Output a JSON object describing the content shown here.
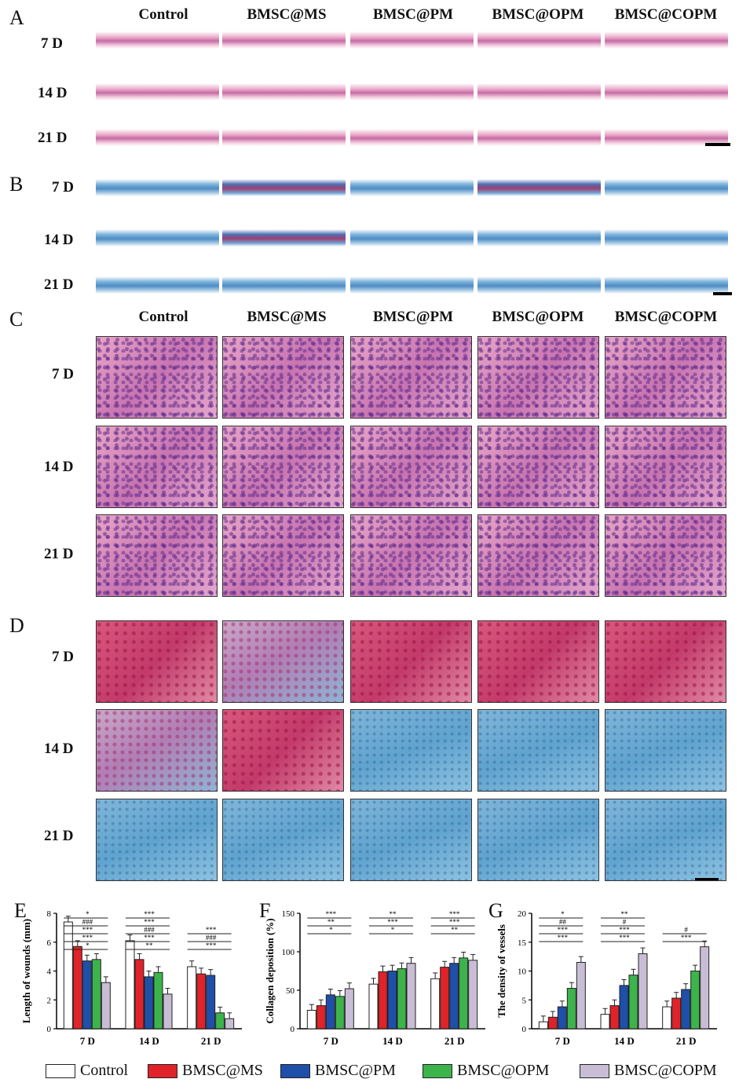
{
  "panels": {
    "A": "A",
    "B": "B",
    "C": "C",
    "D": "D",
    "E": "E",
    "F": "F",
    "G": "G"
  },
  "groups": [
    "Control",
    "BMSC@MS",
    "BMSC@PM",
    "BMSC@OPM",
    "BMSC@COPM"
  ],
  "days": [
    "7 D",
    "14 D",
    "21 D"
  ],
  "colors": {
    "Control": "#ffffff",
    "BMSC@MS": "#e0222a",
    "BMSC@PM": "#1f4fa8",
    "BMSC@OPM": "#3cb44b",
    "BMSC@COPM": "#c9bdd6"
  },
  "chart_data": [
    {
      "type": "bar",
      "panel": "E",
      "ylabel": "Length of wounds (mm)",
      "categories": [
        "7 D",
        "14 D",
        "21 D"
      ],
      "ylim": [
        0,
        8
      ],
      "yticks": [
        0,
        2,
        4,
        6,
        8
      ],
      "series": [
        {
          "name": "Control",
          "values": [
            7.4,
            6.1,
            4.3
          ]
        },
        {
          "name": "BMSC@MS",
          "values": [
            5.7,
            4.8,
            3.8
          ]
        },
        {
          "name": "BMSC@PM",
          "values": [
            4.7,
            3.6,
            3.7
          ]
        },
        {
          "name": "BMSC@OPM",
          "values": [
            4.8,
            3.9,
            1.1
          ]
        },
        {
          "name": "BMSC@COPM",
          "values": [
            3.2,
            2.4,
            0.7
          ]
        }
      ],
      "annotations": [
        "*",
        "***",
        "***",
        "###",
        "*",
        "**",
        "***",
        "###",
        "***",
        "***",
        "***",
        "###",
        "***"
      ]
    },
    {
      "type": "bar",
      "panel": "F",
      "ylabel": "Collagen deposition (%)",
      "categories": [
        "7 D",
        "14 D",
        "21 D"
      ],
      "ylim": [
        0,
        150
      ],
      "yticks": [
        0,
        50,
        100,
        150
      ],
      "series": [
        {
          "name": "Control",
          "values": [
            24,
            58,
            65
          ]
        },
        {
          "name": "BMSC@MS",
          "values": [
            30,
            74,
            80
          ]
        },
        {
          "name": "BMSC@PM",
          "values": [
            44,
            75,
            85
          ]
        },
        {
          "name": "BMSC@OPM",
          "values": [
            42,
            78,
            92
          ]
        },
        {
          "name": "BMSC@COPM",
          "values": [
            52,
            85,
            89
          ]
        }
      ],
      "annotations": [
        "*",
        "**",
        "***",
        "*",
        "***",
        "**",
        "**",
        "***",
        "***"
      ]
    },
    {
      "type": "bar",
      "panel": "G",
      "ylabel": "The density of vessels",
      "categories": [
        "7 D",
        "14 D",
        "21 D"
      ],
      "ylim": [
        0,
        20
      ],
      "yticks": [
        0,
        5,
        10,
        15,
        20
      ],
      "series": [
        {
          "name": "Control",
          "values": [
            1.2,
            2.5,
            3.8
          ]
        },
        {
          "name": "BMSC@MS",
          "values": [
            2.0,
            4.0,
            5.3
          ]
        },
        {
          "name": "BMSC@PM",
          "values": [
            3.8,
            7.5,
            6.8
          ]
        },
        {
          "name": "BMSC@OPM",
          "values": [
            7.0,
            9.3,
            10.0
          ]
        },
        {
          "name": "BMSC@COPM",
          "values": [
            11.5,
            13.0,
            14.2
          ]
        }
      ],
      "annotations": [
        "***",
        "***",
        "##",
        "*",
        "***",
        "***",
        "#",
        "**",
        "***",
        "#"
      ]
    }
  ]
}
